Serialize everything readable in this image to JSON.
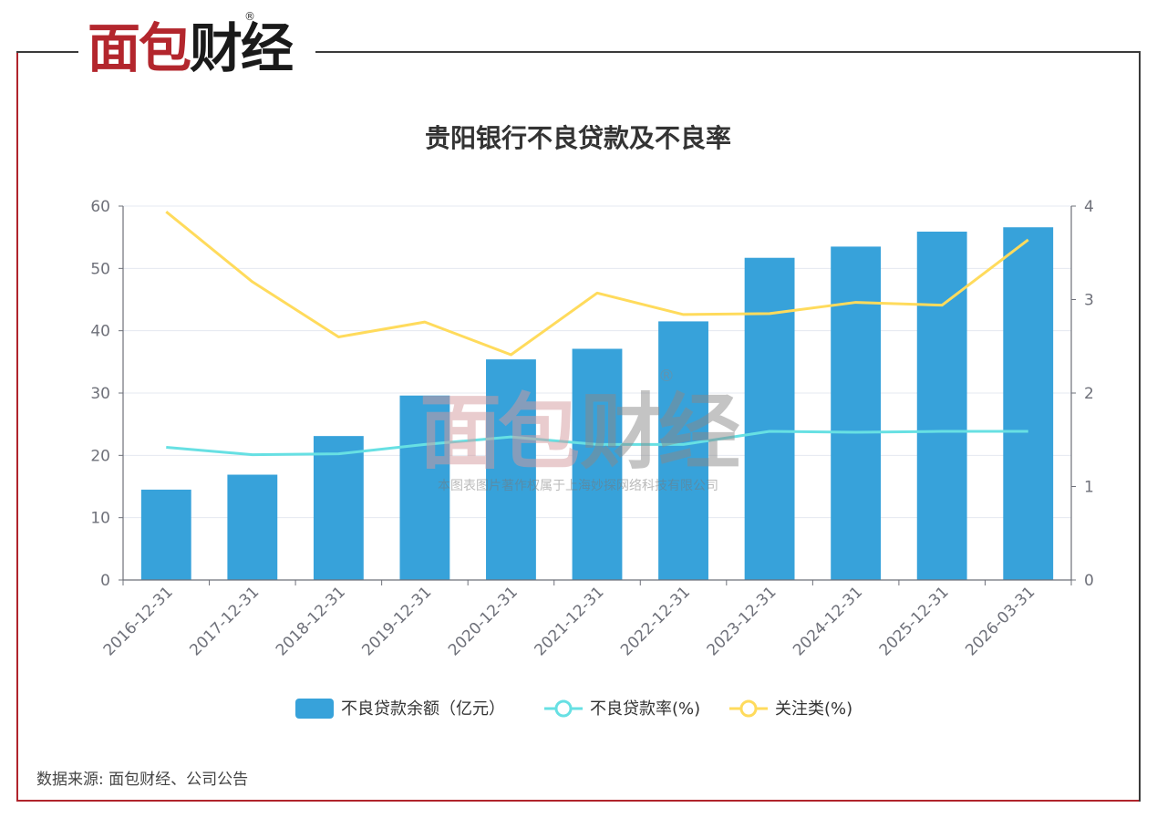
{
  "logo": {
    "brand_part1": "面包",
    "brand_part2": "财经",
    "registered_mark": "®"
  },
  "watermark": {
    "text": "本图表图片著作权属于上海妙探网络科技有限公司",
    "brand_part1": "面包",
    "brand_part2": "财经",
    "registered_mark": "®"
  },
  "source_note": "数据来源: 面包财经、公司公告",
  "colors": {
    "bar": "#37a2da",
    "npl_rate": "#67e0e3",
    "attention": "#ffdb5c",
    "frame_red": "#b0242c",
    "frame_dark": "#3a3a3a"
  },
  "chart_data": {
    "type": "bar",
    "title": "贵阳银行不良贷款及不良率",
    "categories": [
      "2016-12-31",
      "2017-12-31",
      "2018-12-31",
      "2019-12-31",
      "2020-12-31",
      "2021-12-31",
      "2022-12-31",
      "2023-12-31",
      "2024-12-31",
      "2025-12-31",
      "2026-03-31"
    ],
    "series": [
      {
        "name": "不良贷款余额（亿元）",
        "type": "bar",
        "axis": "left",
        "values": [
          14.5,
          16.9,
          23.1,
          29.6,
          35.4,
          37.1,
          41.5,
          51.7,
          53.5,
          55.9,
          56.6
        ]
      },
      {
        "name": "不良贷款率(%)",
        "type": "line",
        "axis": "right",
        "values": [
          1.42,
          1.34,
          1.35,
          1.45,
          1.53,
          1.45,
          1.45,
          1.59,
          1.58,
          1.59,
          1.59
        ]
      },
      {
        "name": "关注类(%)",
        "type": "line",
        "axis": "right",
        "values": [
          3.94,
          3.19,
          2.6,
          2.76,
          2.41,
          3.07,
          2.84,
          2.85,
          2.97,
          2.94,
          3.64
        ]
      }
    ],
    "y_left": {
      "min": 0,
      "max": 60,
      "ticks": [
        "0",
        "10",
        "20",
        "30",
        "40",
        "50",
        "60"
      ]
    },
    "y_right": {
      "min": 0,
      "max": 4,
      "ticks": [
        "0",
        "1",
        "2",
        "3",
        "4"
      ]
    },
    "grid": true,
    "legend_position": "bottom"
  }
}
